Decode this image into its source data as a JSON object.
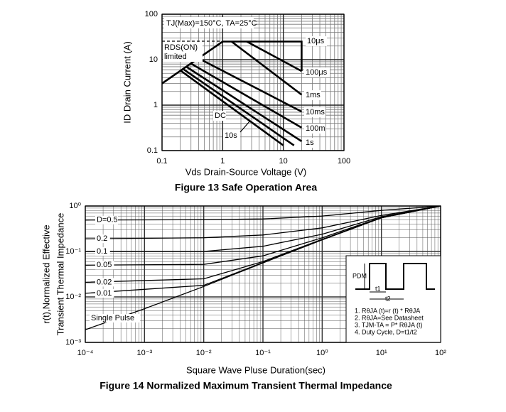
{
  "chart_data": [
    {
      "type": "line",
      "title": "Figure 13    Safe Operation Area",
      "x_label": "Vds Drain-Source Voltage (V)",
      "y_label": "ID Drain Current (A)",
      "xscale": "log",
      "yscale": "log",
      "grid": true,
      "xlim": [
        0.1,
        100
      ],
      "ylim": [
        0.1,
        100
      ],
      "xticks": [
        0.1,
        1,
        10,
        100
      ],
      "yticks": [
        0.1,
        1,
        10,
        100
      ],
      "annotations": [
        "TJ(Max)=150°C, TA=25°C",
        "RDS(ON) limited"
      ],
      "series": [
        {
          "name": "10μs",
          "color": "#000000",
          "x": [
            0.1,
            1,
            20,
            20
          ],
          "y": [
            3,
            25,
            25,
            5.6
          ]
        },
        {
          "name": "100μs",
          "color": "#000000",
          "x": [
            2.5,
            20
          ],
          "y": [
            25,
            5.6
          ]
        },
        {
          "name": "1ms",
          "color": "#000000",
          "x": [
            1.4,
            20
          ],
          "y": [
            25,
            1.7
          ]
        },
        {
          "name": "10ms",
          "color": "#000000",
          "x": [
            0.4,
            20
          ],
          "y": [
            10.7,
            0.72
          ]
        },
        {
          "name": "100m",
          "color": "#000000",
          "x": [
            0.3,
            20
          ],
          "y": [
            8.2,
            0.32
          ]
        },
        {
          "name": "1s",
          "color": "#000000",
          "x": [
            0.25,
            20
          ],
          "y": [
            7,
            0.16
          ]
        },
        {
          "name": "DC",
          "color": "#000000",
          "x": [
            0.2,
            10
          ],
          "y": [
            5.8,
            0.13
          ]
        },
        {
          "name": "10s",
          "color": "#000000",
          "x": [
            0.22,
            15
          ],
          "y": [
            6.3,
            0.13
          ]
        }
      ]
    },
    {
      "type": "line",
      "title": "Figure 14 Normalized Maximum Transient Thermal Impedance",
      "x_label": "Square Wave Pluse Duration(sec)",
      "y_label": [
        "r(t),Normalized Effective",
        "Transient Thermal Impedance"
      ],
      "xscale": "log",
      "yscale": "log",
      "grid": true,
      "xlim": [
        0.0001,
        100
      ],
      "ylim": [
        0.001,
        1
      ],
      "xticks": [
        {
          "value": 0.0001,
          "label": "10⁻⁴"
        },
        {
          "value": 0.001,
          "label": "10⁻³"
        },
        {
          "value": 0.01,
          "label": "10⁻²"
        },
        {
          "value": 0.1,
          "label": "10⁻¹"
        },
        {
          "value": 1,
          "label": "10⁰"
        },
        {
          "value": 10,
          "label": "10¹"
        },
        {
          "value": 100,
          "label": "10²"
        }
      ],
      "yticks": [
        {
          "value": 0.001,
          "label": "10⁻³"
        },
        {
          "value": 0.01,
          "label": "10⁻²"
        },
        {
          "value": 0.1,
          "label": "10⁻¹"
        },
        {
          "value": 1,
          "label": "10⁰"
        }
      ],
      "annotations": [
        "PDM",
        "t1",
        "t2",
        "1. RθJA (t)=r (t) * RθJA",
        "2. RθJA=See Datasheet",
        "3. TJM-TA = P* RθJA (t)",
        "4. Duty Cycle, D=t1/t2"
      ],
      "series": [
        {
          "name": "D=0.5",
          "color": "#000000",
          "x": [
            0.0001,
            0.01,
            0.1,
            1,
            10,
            100
          ],
          "y": [
            0.49,
            0.5,
            0.52,
            0.6,
            0.8,
            1
          ]
        },
        {
          "name": "0.2",
          "color": "#000000",
          "x": [
            0.0001,
            0.01,
            0.1,
            1,
            10,
            100
          ],
          "y": [
            0.19,
            0.2,
            0.23,
            0.33,
            0.62,
            1
          ]
        },
        {
          "name": "0.1",
          "color": "#000000",
          "x": [
            0.0001,
            0.01,
            0.1,
            1,
            10,
            100
          ],
          "y": [
            0.1,
            0.1,
            0.13,
            0.24,
            0.58,
            1
          ]
        },
        {
          "name": "0.05",
          "color": "#000000",
          "x": [
            0.0001,
            0.01,
            0.1,
            1,
            10,
            100
          ],
          "y": [
            0.05,
            0.052,
            0.08,
            0.2,
            0.56,
            1
          ]
        },
        {
          "name": "0.02",
          "color": "#000000",
          "x": [
            0.0001,
            0.01,
            0.1,
            1,
            10,
            100
          ],
          "y": [
            0.021,
            0.025,
            0.06,
            0.185,
            0.55,
            1
          ]
        },
        {
          "name": "0.01",
          "color": "#000000",
          "x": [
            0.0001,
            0.01,
            0.1,
            1,
            10,
            100
          ],
          "y": [
            0.012,
            0.018,
            0.057,
            0.18,
            0.55,
            1
          ]
        },
        {
          "name": "Single Pulse",
          "color": "#000000",
          "x": [
            0.0001,
            0.001,
            0.01,
            0.1,
            1,
            10,
            100
          ],
          "y": [
            0.0019,
            0.0055,
            0.017,
            0.056,
            0.18,
            0.55,
            1
          ]
        }
      ]
    }
  ]
}
